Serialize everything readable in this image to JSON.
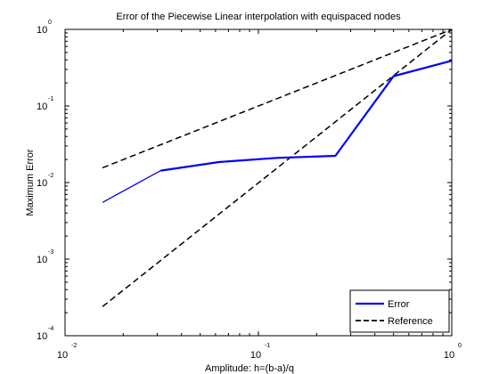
{
  "chart_data": {
    "type": "line",
    "title": "Error of the Piecewise Linear interpolation with equispaced nodes",
    "xlabel": "Amplitude: h=(b-a)/q",
    "ylabel": "Maximum Error",
    "xscale": "log",
    "yscale": "log",
    "xlim": [
      0.01,
      1
    ],
    "ylim": [
      0.0001,
      1
    ],
    "x_ticks": [
      {
        "base": "10",
        "exp": "-2",
        "value": 0.01
      },
      {
        "base": "10",
        "exp": "-1",
        "value": 0.1
      },
      {
        "base": "10",
        "exp": "0",
        "value": 1
      }
    ],
    "y_ticks": [
      {
        "base": "10",
        "exp": "-4",
        "value": 0.0001
      },
      {
        "base": "10",
        "exp": "-3",
        "value": 0.001
      },
      {
        "base": "10",
        "exp": "-2",
        "value": 0.01
      },
      {
        "base": "10",
        "exp": "-1",
        "value": 0.1
      },
      {
        "base": "10",
        "exp": "0",
        "value": 1
      }
    ],
    "grid": false,
    "legend_position": "bottom-right",
    "series": [
      {
        "name": "Error",
        "color": "#0000ff",
        "style": "solid",
        "x": [
          0.015625,
          0.03125,
          0.0625,
          0.125,
          0.25,
          0.5,
          1
        ],
        "y": [
          0.0055,
          0.0143,
          0.0185,
          0.021,
          0.0223,
          0.245,
          0.39
        ]
      },
      {
        "name": "Reference",
        "color": "#000000",
        "style": "dashed",
        "x": [
          0.015625,
          1
        ],
        "y": [
          0.0156,
          1
        ]
      },
      {
        "name": "",
        "color": "#000000",
        "style": "dashed",
        "x": [
          0.015625,
          1
        ],
        "y": [
          0.00024,
          1
        ]
      }
    ]
  }
}
